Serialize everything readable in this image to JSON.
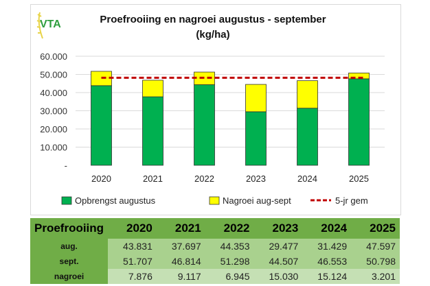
{
  "logo_text": "VTA",
  "chart_data": {
    "type": "bar",
    "stacked": true,
    "title": "Proefrooiing en nagroei augustus - september",
    "subtitle": "(kg/ha)",
    "categories": [
      "2020",
      "2021",
      "2022",
      "2023",
      "2024",
      "2025"
    ],
    "series": [
      {
        "name": "Opbrengst augustus",
        "color": "#00b050",
        "values": [
          43831,
          37697,
          44353,
          29477,
          31429,
          47597
        ]
      },
      {
        "name": "Nagroei aug-sept",
        "color": "#ffff00",
        "values": [
          7876,
          9117,
          6945,
          15030,
          15124,
          3201
        ]
      }
    ],
    "line": {
      "name": "5-jr gem",
      "color": "#c00000",
      "style": "dashed",
      "value": 48176
    },
    "ylim": [
      0,
      60000
    ],
    "yticks": [
      "-",
      "10.000",
      "20.000",
      "30.000",
      "40.000",
      "50.000",
      "60.000"
    ],
    "grid": true,
    "legend": "bottom"
  },
  "table": {
    "corner": "Proefrooiing",
    "years": [
      "2020",
      "2021",
      "2022",
      "2023",
      "2024",
      "2025"
    ],
    "rows": [
      {
        "label": "aug.",
        "values": [
          "43.831",
          "37.697",
          "44.353",
          "29.477",
          "31.429",
          "47.597"
        ]
      },
      {
        "label": "sept.",
        "values": [
          "51.707",
          "46.814",
          "51.298",
          "44.507",
          "46.553",
          "50.798"
        ]
      },
      {
        "label": "nagroei",
        "values": [
          "7.876",
          "9.117",
          "6.945",
          "15.030",
          "15.124",
          "3.201"
        ]
      }
    ]
  }
}
